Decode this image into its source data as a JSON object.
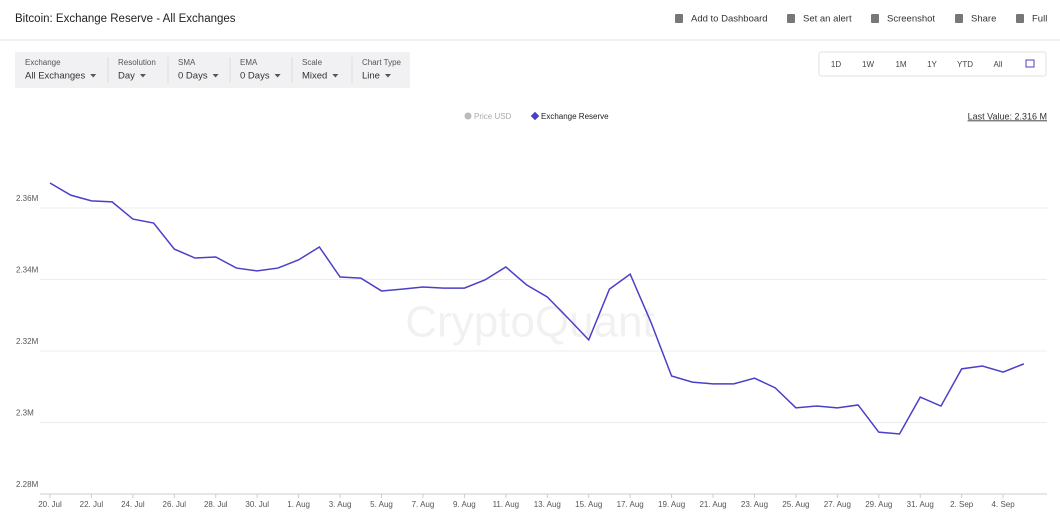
{
  "header": {
    "title": "Bitcoin: Exchange Reserve - All Exchanges",
    "actions": [
      "Add to Dashboard",
      "Set an alert",
      "Screenshot",
      "Share",
      "Full"
    ]
  },
  "filters": [
    {
      "label": "Exchange",
      "value": "All Exchanges"
    },
    {
      "label": "Resolution",
      "value": "Day"
    },
    {
      "label": "SMA",
      "value": "0 Days"
    },
    {
      "label": "EMA",
      "value": "0 Days"
    },
    {
      "label": "Scale",
      "value": "Mixed"
    },
    {
      "label": "Chart Type",
      "value": "Line"
    }
  ],
  "ranges": [
    "1D",
    "1W",
    "1M",
    "1Y",
    "YTD",
    "All"
  ],
  "chart_data": {
    "type": "line",
    "x": [
      "20. Jul",
      null,
      "22. Jul",
      null,
      "24. Jul",
      null,
      "26. Jul",
      null,
      "28. Jul",
      null,
      "30. Jul",
      null,
      "1. Aug",
      null,
      "3. Aug",
      null,
      "5. Aug",
      null,
      "7. Aug",
      null,
      "9. Aug",
      null,
      "11. Aug",
      null,
      "13. Aug",
      null,
      "15. Aug",
      null,
      "17. Aug",
      null,
      "19. Aug",
      null,
      "21. Aug",
      null,
      "23. Aug",
      null,
      "25. Aug",
      null,
      "27. Aug",
      null,
      "29. Aug",
      null,
      "31. Aug",
      null,
      "2. Sep",
      null,
      "4. Sep",
      null
    ],
    "series": [
      {
        "name": "Exchange Reserve",
        "color": "#4b3fc9",
        "values": [
          2367000,
          2363600,
          2362000,
          2361700,
          2356900,
          2355800,
          2348500,
          2346000,
          2346300,
          2343200,
          2342400,
          2343200,
          2345500,
          2349100,
          2340700,
          2340400,
          2336800,
          2337300,
          2337900,
          2337600,
          2337600,
          2339900,
          2343500,
          2338500,
          2335100,
          2329200,
          2323100,
          2337300,
          2341500,
          2328100,
          2313000,
          2311300,
          2310800,
          2310800,
          2312400,
          2309700,
          2304100,
          2304600,
          2304100,
          2304900,
          2297300,
          2296800,
          2307100,
          2304600,
          2315000,
          2315800,
          2314100,
          2316400
        ]
      }
    ],
    "ylim": [
      2280000,
      2380000
    ],
    "yticks": [
      {
        "value": 2280000,
        "label": "2.28M"
      },
      {
        "value": 2300000,
        "label": "2.3M"
      },
      {
        "value": 2320000,
        "label": "2.32M"
      },
      {
        "value": 2340000,
        "label": "2.34M"
      },
      {
        "value": 2360000,
        "label": "2.36M"
      }
    ],
    "grid": true,
    "legend_extra": "Price USD",
    "last_value": "Last Value: 2.316 M",
    "watermark": "CryptoQuant"
  }
}
